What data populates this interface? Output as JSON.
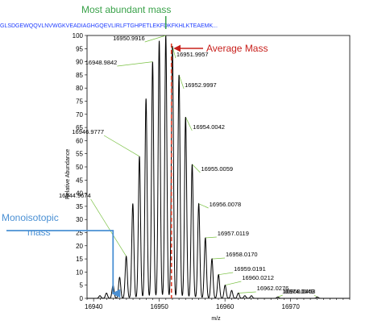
{
  "chart_data": {
    "type": "line",
    "sequence": "GLSDGEWQQVLNVWGKVEADIAGHGQEVLIRLFTGHPETLEKFDKFKHLKTEAEMK...",
    "xlabel": "m/z",
    "ylabel": "Relative Abundance",
    "xlim": [
      16939,
      16979
    ],
    "ylim": [
      0,
      100
    ],
    "x_ticks": [
      16940,
      16950,
      16960,
      16970
    ],
    "y_ticks": [
      0,
      5,
      10,
      15,
      20,
      25,
      30,
      35,
      40,
      45,
      50,
      55,
      60,
      65,
      70,
      75,
      80,
      85,
      90,
      95,
      100
    ],
    "peaks": [
      {
        "mz": 16940.96,
        "intensity": 1
      },
      {
        "mz": 16941.96,
        "intensity": 2
      },
      {
        "mz": 16942.96,
        "intensity": 5
      },
      {
        "mz": 16943.96,
        "intensity": 8
      },
      {
        "mz": 16944.9674,
        "intensity": 16,
        "label": "16944.9674"
      },
      {
        "mz": 16945.97,
        "intensity": 36
      },
      {
        "mz": 16946.9777,
        "intensity": 54,
        "label": "16946.9777"
      },
      {
        "mz": 16947.98,
        "intensity": 76
      },
      {
        "mz": 16948.9842,
        "intensity": 90,
        "label": "16948.9842"
      },
      {
        "mz": 16949.99,
        "intensity": 98
      },
      {
        "mz": 16950.9916,
        "intensity": 100,
        "label": "16950.9916"
      },
      {
        "mz": 16951.9957,
        "intensity": 96,
        "label": "16951.9957"
      },
      {
        "mz": 16952.9997,
        "intensity": 85,
        "label": "16952.9997"
      },
      {
        "mz": 16954.0042,
        "intensity": 69,
        "label": "16954.0042"
      },
      {
        "mz": 16955.0059,
        "intensity": 51,
        "label": "16955.0059"
      },
      {
        "mz": 16956.0078,
        "intensity": 36,
        "label": "16956.0078"
      },
      {
        "mz": 16957.0119,
        "intensity": 23,
        "label": "16957.0119"
      },
      {
        "mz": 16958.017,
        "intensity": 15,
        "label": "16958.0170"
      },
      {
        "mz": 16959.0191,
        "intensity": 9,
        "label": "16959.0191"
      },
      {
        "mz": 16960.0212,
        "intensity": 5,
        "label": "16960.0212"
      },
      {
        "mz": 16961.02,
        "intensity": 3
      },
      {
        "mz": 16962.0276,
        "intensity": 2,
        "label": "16962.0276"
      },
      {
        "mz": 16963.03,
        "intensity": 1
      },
      {
        "mz": 16964.03,
        "intensity": 1
      },
      {
        "mz": 16968.0453,
        "intensity": 0.5,
        "label": "16968.0453"
      },
      {
        "mz": 16974.0649,
        "intensity": 0.5,
        "label": "16974.0649"
      }
    ],
    "annotations": {
      "most_abundant": {
        "text": "Most abundant mass",
        "mz": 16950.9916,
        "color": "#3aa24a"
      },
      "average": {
        "text": "Average Mass",
        "mz": 16951.85,
        "color": "#c8201c"
      },
      "monoisotopic": {
        "text_lines": [
          "Monoisotopic",
          "mass"
        ],
        "mz": 16942.96,
        "color": "#4a90d4"
      }
    },
    "label_leader_color": "#7ac143",
    "trace_color": "#000000"
  }
}
